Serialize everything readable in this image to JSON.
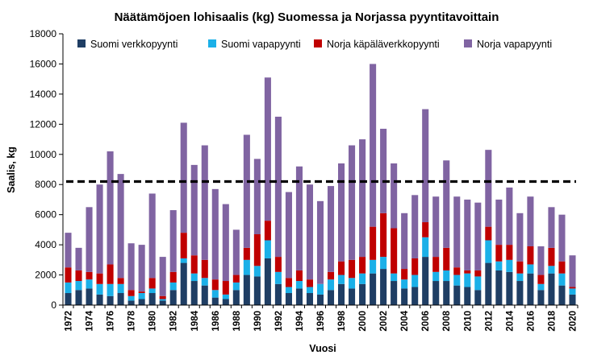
{
  "chart_data": {
    "type": "bar",
    "stacked": true,
    "title": "Näätämöjoen lohisaalis (kg) Suomessa ja Norjassa pyyntitavoittain",
    "xlabel": "Vuosi",
    "ylabel": "Saalis, kg",
    "ylim": [
      0,
      18000
    ],
    "yticks": [
      0,
      2000,
      4000,
      6000,
      8000,
      10000,
      12000,
      14000,
      16000,
      18000
    ],
    "ytick_labels": [
      "0",
      "2000",
      "4000",
      "6000",
      "8000",
      "10000",
      "12000",
      "14000",
      "16000",
      "18000"
    ],
    "grid": false,
    "legend_position": "top",
    "reference_line": {
      "value": 8200,
      "style": "dashed",
      "color": "#000000"
    },
    "categories": [
      1972,
      1973,
      1974,
      1975,
      1976,
      1977,
      1978,
      1979,
      1980,
      1981,
      1982,
      1983,
      1984,
      1985,
      1986,
      1987,
      1988,
      1989,
      1990,
      1991,
      1992,
      1993,
      1994,
      1995,
      1996,
      1997,
      1998,
      1999,
      2000,
      2001,
      2002,
      2003,
      2004,
      2005,
      2006,
      2007,
      2008,
      2009,
      2010,
      2011,
      2012,
      2013,
      2014,
      2015,
      2016,
      2017,
      2018,
      2019,
      2020
    ],
    "xtick_labels": [
      "1972",
      "1974",
      "1976",
      "1978",
      "1980",
      "1982",
      "1984",
      "1986",
      "1988",
      "1990",
      "1992",
      "1994",
      "1996",
      "1998",
      "2000",
      "2002",
      "2004",
      "2006",
      "2008",
      "2010",
      "2012",
      "2014",
      "2016",
      "2018",
      "2020"
    ],
    "series": [
      {
        "name": "Suomi verkkopyynti",
        "color": "#1F3E64",
        "values": [
          800,
          1000,
          1100,
          700,
          600,
          800,
          300,
          400,
          800,
          300,
          1000,
          2800,
          1600,
          1300,
          500,
          400,
          1000,
          2000,
          1900,
          3100,
          1400,
          800,
          1100,
          800,
          700,
          1000,
          1400,
          1100,
          1400,
          2100,
          2400,
          1600,
          1100,
          1200,
          3200,
          1600,
          1600,
          1300,
          1200,
          1000,
          2800,
          2300,
          2200,
          1600,
          2100,
          1000,
          2100,
          1300,
          700
        ]
      },
      {
        "name": "Suomi vapapyynti",
        "color": "#1BB0E8",
        "values": [
          700,
          600,
          600,
          700,
          800,
          600,
          300,
          400,
          300,
          100,
          500,
          300,
          500,
          500,
          500,
          300,
          500,
          1000,
          700,
          1200,
          800,
          400,
          500,
          400,
          700,
          700,
          600,
          700,
          700,
          900,
          800,
          500,
          600,
          800,
          1300,
          600,
          700,
          700,
          900,
          900,
          1500,
          600,
          800,
          500,
          600,
          400,
          500,
          800,
          400
        ]
      },
      {
        "name": "Norja käpäläverkkopyynti",
        "color": "#C00000",
        "values": [
          1000,
          700,
          500,
          700,
          1300,
          400,
          400,
          100,
          700,
          200,
          700,
          1700,
          1200,
          1200,
          700,
          900,
          500,
          800,
          2100,
          1300,
          1000,
          600,
          700,
          500,
          0,
          500,
          900,
          1200,
          1100,
          2200,
          2900,
          3000,
          700,
          1100,
          1000,
          1000,
          1500,
          500,
          200,
          400,
          900,
          1100,
          1000,
          800,
          1200,
          600,
          1200,
          800,
          100
        ]
      },
      {
        "name": "Norja vapapyynti",
        "color": "#8064A2",
        "values": [
          2300,
          1500,
          4300,
          5900,
          7500,
          6900,
          3100,
          3100,
          5600,
          2600,
          4100,
          7300,
          6000,
          7600,
          6000,
          5100,
          3000,
          7500,
          5000,
          9500,
          9300,
          5700,
          6900,
          6300,
          5500,
          5700,
          6500,
          7600,
          7800,
          10800,
          5600,
          4300,
          3700,
          4200,
          7500,
          4000,
          5800,
          4700,
          4700,
          4500,
          5100,
          3000,
          3800,
          3200,
          3300,
          1900,
          2700,
          3100,
          2100
        ]
      }
    ]
  }
}
